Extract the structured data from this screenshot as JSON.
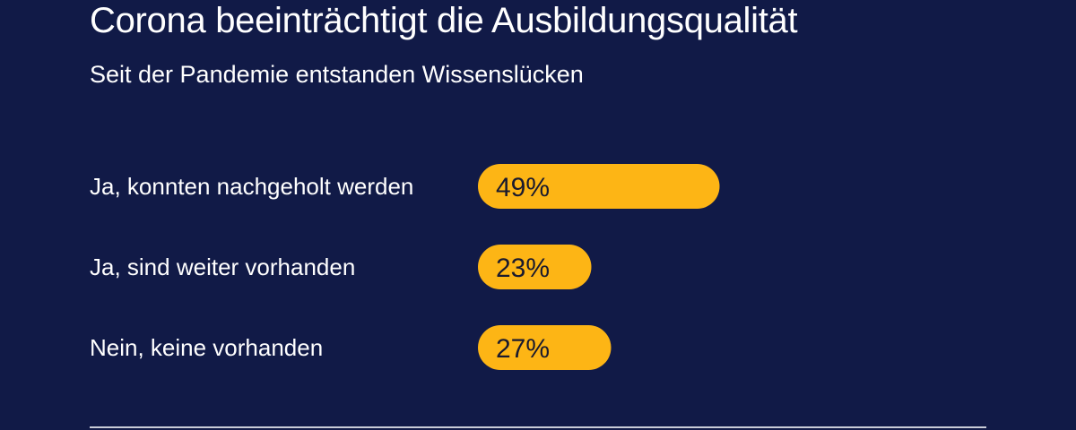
{
  "title": "Corona beeinträchtigt die Ausbildungsqualität",
  "subtitle": "Seit der Pandemie entstanden Wissenslücken",
  "colors": {
    "background": "#111a47",
    "bar": "#fdb515",
    "text": "#ffffff",
    "value_text": "#1a1a2e"
  },
  "chart_data": {
    "type": "bar",
    "orientation": "horizontal",
    "title": "Corona beeinträchtigt die Ausbildungsqualität",
    "subtitle": "Seit der Pandemie entstanden Wissenslücken",
    "categories": [
      "Ja, konnten nachgeholt werden",
      "Ja, sind weiter vorhanden",
      "Nein, keine vorhanden"
    ],
    "values": [
      49,
      23,
      27
    ],
    "value_labels": [
      "49%",
      "23%",
      "27%"
    ],
    "unit": "%",
    "xlim": [
      0,
      100
    ],
    "grid": false,
    "legend": "none"
  }
}
